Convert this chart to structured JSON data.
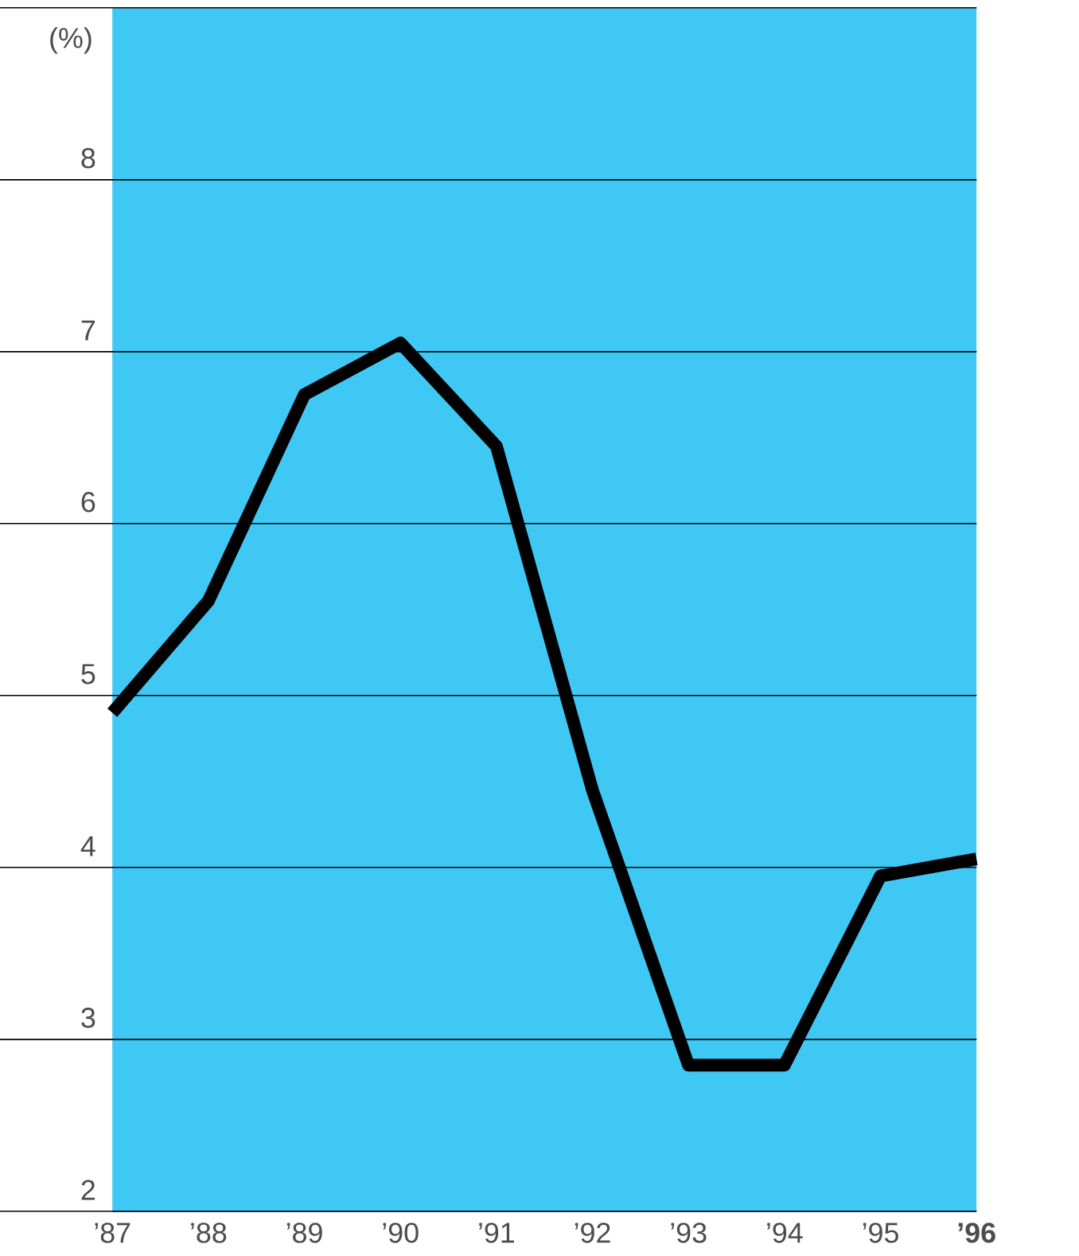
{
  "chart_data": {
    "type": "line",
    "ylabel": "(%)",
    "categories": [
      "’87",
      "’88",
      "’89",
      "’90",
      "’91",
      "’92",
      "’93",
      "’94",
      "’95",
      "**’96**"
    ],
    "series": [
      {
        "color": "#000000",
        "values": [
          4.9,
          5.55,
          6.75,
          7.05,
          6.45,
          4.45,
          2.85,
          2.85,
          3.95,
          4.05
        ]
      }
    ],
    "ylim": [
      2,
      9
    ],
    "yticks": [
      2,
      3,
      4,
      5,
      6,
      7,
      8,
      {
        "value": 9,
        "label": null
      }
    ],
    "grid": "y",
    "line_style": "solid",
    "marker": "none"
  }
}
